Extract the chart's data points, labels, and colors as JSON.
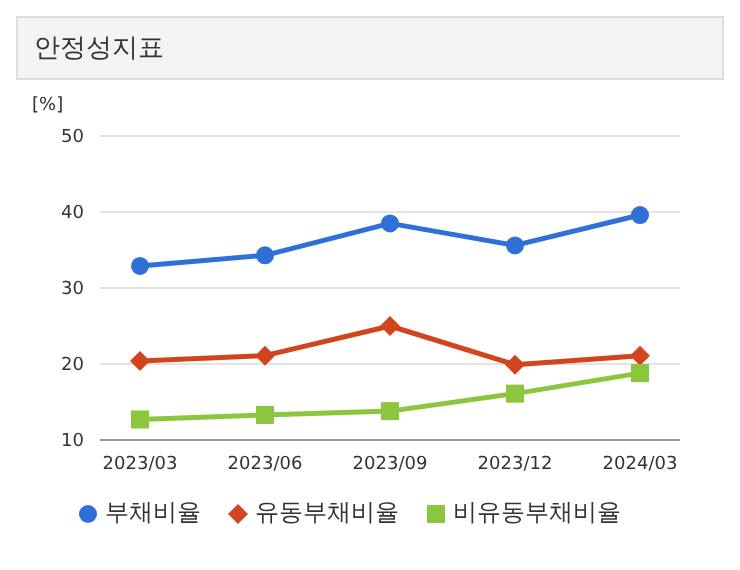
{
  "chart_data": {
    "type": "line",
    "title": "안정성지표",
    "ylabel": "[%]",
    "categories": [
      "2023/03",
      "2023/06",
      "2023/09",
      "2023/12",
      "2024/03"
    ],
    "series": [
      {
        "name": "부채비율",
        "color": "#2f6fd8",
        "marker": "circle",
        "values": [
          32.9,
          34.3,
          38.5,
          35.6,
          39.6
        ]
      },
      {
        "name": "유동부채비율",
        "color": "#d2441c",
        "marker": "diamond",
        "values": [
          20.4,
          21.1,
          25.0,
          19.9,
          21.1
        ]
      },
      {
        "name": "비유동부채비율",
        "color": "#8cc63f",
        "marker": "square",
        "values": [
          12.7,
          13.3,
          13.8,
          16.1,
          18.8
        ]
      }
    ],
    "ylim": [
      10,
      50
    ],
    "yticks": [
      10,
      20,
      30,
      40,
      50
    ],
    "grid": "y",
    "legend": "bottom"
  }
}
